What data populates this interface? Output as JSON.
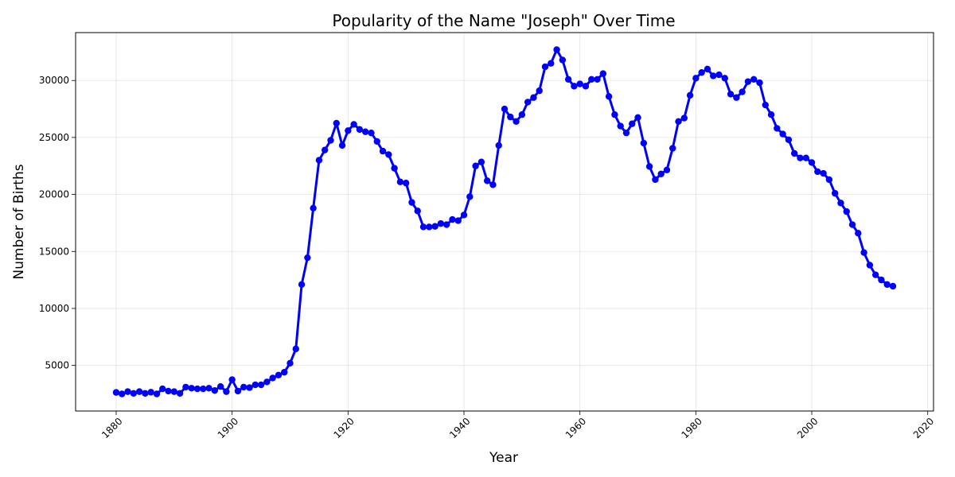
{
  "chart_data": {
    "type": "line",
    "title": "Popularity of the Name \"Joseph\" Over Time",
    "xlabel": "Year",
    "ylabel": "Number of Births",
    "xlim": [
      1873,
      2021
    ],
    "ylim": [
      1000,
      34200
    ],
    "x_ticks": [
      1880,
      1900,
      1920,
      1940,
      1960,
      1980,
      2000,
      2020
    ],
    "y_ticks": [
      5000,
      10000,
      15000,
      20000,
      25000,
      30000
    ],
    "grid": true,
    "line_color": "#0000ff",
    "series": [
      {
        "x": [
          1880,
          1881,
          1882,
          1883,
          1884,
          1885,
          1886,
          1887,
          1888,
          1889,
          1890,
          1891,
          1892,
          1893,
          1894,
          1895,
          1896,
          1897,
          1898,
          1899,
          1900,
          1901,
          1902,
          1903,
          1904,
          1905,
          1906,
          1907,
          1908,
          1909,
          1910,
          1911,
          1912,
          1913,
          1914,
          1915,
          1916,
          1917,
          1918,
          1919,
          1920,
          1921,
          1922,
          1923,
          1924,
          1925,
          1926,
          1927,
          1928,
          1929,
          1930,
          1931,
          1932,
          1933,
          1934,
          1935,
          1936,
          1937,
          1938,
          1939,
          1940,
          1941,
          1942,
          1943,
          1944,
          1945,
          1946,
          1947,
          1948,
          1949,
          1950,
          1951,
          1952,
          1953,
          1954,
          1955,
          1956,
          1957,
          1958,
          1959,
          1960,
          1961,
          1962,
          1963,
          1964,
          1965,
          1966,
          1967,
          1968,
          1969,
          1970,
          1971,
          1972,
          1973,
          1974,
          1975,
          1976,
          1977,
          1978,
          1979,
          1980,
          1981,
          1982,
          1983,
          1984,
          1985,
          1986,
          1987,
          1988,
          1989,
          1990,
          1991,
          1992,
          1993,
          1994,
          1995,
          1996,
          1997,
          1998,
          1999,
          2000,
          2001,
          2002,
          2003,
          2004,
          2005,
          2006,
          2007,
          2008,
          2009,
          2010,
          2011,
          2012,
          2013,
          2014
        ],
        "values": [
          2630,
          2500,
          2700,
          2550,
          2700,
          2550,
          2650,
          2500,
          2950,
          2750,
          2700,
          2550,
          3100,
          3000,
          2950,
          2950,
          3000,
          2800,
          3150,
          2700,
          3750,
          2750,
          3100,
          3050,
          3300,
          3300,
          3550,
          3900,
          4150,
          4400,
          5200,
          6450,
          12100,
          14450,
          18800,
          23000,
          23900,
          24750,
          26250,
          24300,
          25600,
          26150,
          25700,
          25500,
          25400,
          24650,
          23800,
          23500,
          22300,
          21100,
          21000,
          19300,
          18550,
          17150,
          17150,
          17200,
          17450,
          17350,
          17800,
          17700,
          18200,
          19800,
          22500,
          22850,
          21200,
          20850,
          24300,
          27500,
          26800,
          26400,
          27000,
          28100,
          28500,
          29100,
          31200,
          31500,
          32700,
          31800,
          30100,
          29500,
          29700,
          29500,
          30100,
          30100,
          30600,
          28600,
          27000,
          26000,
          25400,
          26200,
          26750,
          24500,
          22450,
          21300,
          21800,
          22150,
          24050,
          26400,
          26700,
          28700,
          30200,
          30700,
          31000,
          30400,
          30500,
          30200,
          28800,
          28500,
          29000,
          29900,
          30100,
          29800,
          27850,
          27000,
          25800,
          25300,
          24800,
          23600,
          23200,
          23200,
          22800,
          22000,
          21850,
          21300,
          20100,
          19250,
          18500,
          17350,
          16600,
          14900,
          13800,
          12950,
          12500,
          12100,
          11950
        ]
      }
    ]
  }
}
